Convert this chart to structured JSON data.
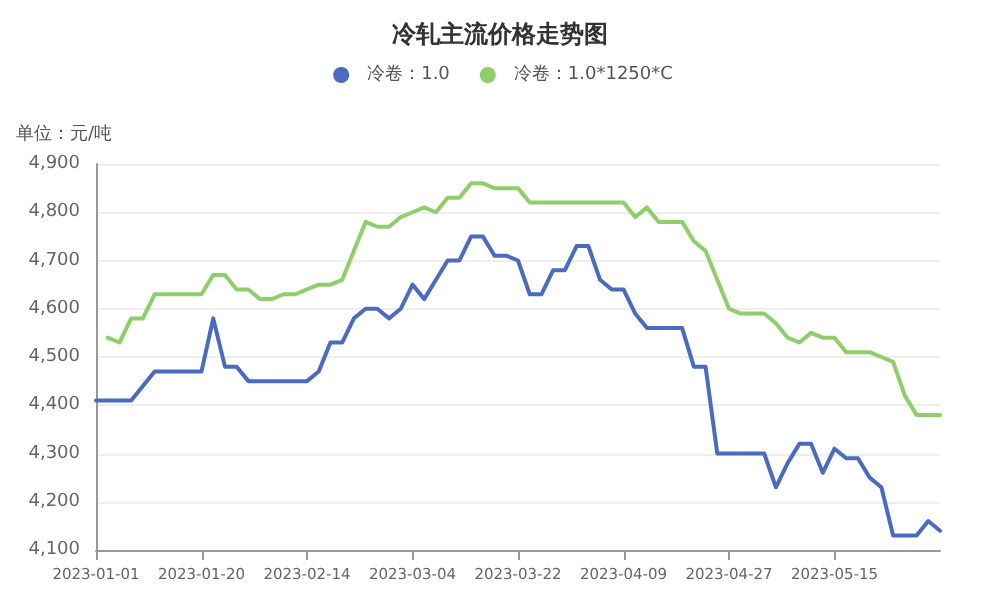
{
  "chart_data": {
    "type": "line",
    "title": "冷轧主流价格走势图",
    "ylabel": "单位：元/吨",
    "categories": [
      "2023-01-01",
      null,
      null,
      null,
      null,
      null,
      null,
      null,
      null,
      "2023-01-20",
      null,
      null,
      null,
      null,
      null,
      null,
      null,
      null,
      "2023-02-14",
      null,
      null,
      null,
      null,
      null,
      null,
      null,
      null,
      "2023-03-04",
      null,
      null,
      null,
      null,
      null,
      null,
      null,
      null,
      "2023-03-22",
      null,
      null,
      null,
      null,
      null,
      null,
      null,
      null,
      "2023-04-09",
      null,
      null,
      null,
      null,
      null,
      null,
      null,
      null,
      "2023-04-27",
      null,
      null,
      null,
      null,
      null,
      null,
      null,
      null,
      "2023-05-15",
      null,
      null,
      null,
      null,
      null,
      null,
      null,
      null,
      null
    ],
    "series": [
      {
        "name": "冷卷：1.0",
        "color": "#4a6bbf",
        "values": [
          4410,
          4410,
          4410,
          4410,
          4440,
          4470,
          4470,
          4470,
          4470,
          4470,
          4580,
          4480,
          4480,
          4450,
          4450,
          4450,
          4450,
          4450,
          4450,
          4470,
          4530,
          4530,
          4580,
          4600,
          4600,
          4580,
          4600,
          4650,
          4620,
          4660,
          4700,
          4700,
          4750,
          4750,
          4710,
          4710,
          4700,
          4630,
          4630,
          4680,
          4680,
          4730,
          4730,
          4660,
          4640,
          4640,
          4590,
          4560,
          4560,
          4560,
          4560,
          4480,
          4480,
          4300,
          4300,
          4300,
          4300,
          4300,
          4230,
          4280,
          4320,
          4320,
          4260,
          4310,
          4290,
          4290,
          4250,
          4230,
          4130,
          4130,
          4130,
          4160,
          4140
        ]
      },
      {
        "name": "冷卷：1.0*1250*C",
        "color": "#8fcf6a",
        "values": [
          null,
          4540,
          4530,
          4580,
          4580,
          4630,
          4630,
          4630,
          4630,
          4630,
          4670,
          4670,
          4640,
          4640,
          4620,
          4620,
          4630,
          4630,
          4640,
          4650,
          4650,
          4660,
          4720,
          4780,
          4770,
          4770,
          4790,
          4800,
          4810,
          4800,
          4830,
          4830,
          4860,
          4860,
          4850,
          4850,
          4850,
          4820,
          4820,
          4820,
          4820,
          4820,
          4820,
          4820,
          4820,
          4820,
          4790,
          4810,
          4780,
          4780,
          4780,
          4740,
          4720,
          4660,
          4600,
          4590,
          4590,
          4590,
          4570,
          4540,
          4530,
          4550,
          4540,
          4540,
          4510,
          4510,
          4510,
          4500,
          4490,
          4420,
          4380,
          4380,
          4380
        ]
      }
    ],
    "ylim": [
      4100,
      4900
    ],
    "yticks": [
      {
        "value": 4100,
        "label": "4,100"
      },
      {
        "value": 4200,
        "label": "4,200"
      },
      {
        "value": 4300,
        "label": "4,300"
      },
      {
        "value": 4400,
        "label": "4,400"
      },
      {
        "value": 4500,
        "label": "4,500"
      },
      {
        "value": 4600,
        "label": "4,600"
      },
      {
        "value": 4700,
        "label": "4,700"
      },
      {
        "value": 4800,
        "label": "4,800"
      },
      {
        "value": 4900,
        "label": "4,900"
      }
    ],
    "grid": "y",
    "legend": "top",
    "marker": "none",
    "line_style": "solid"
  }
}
